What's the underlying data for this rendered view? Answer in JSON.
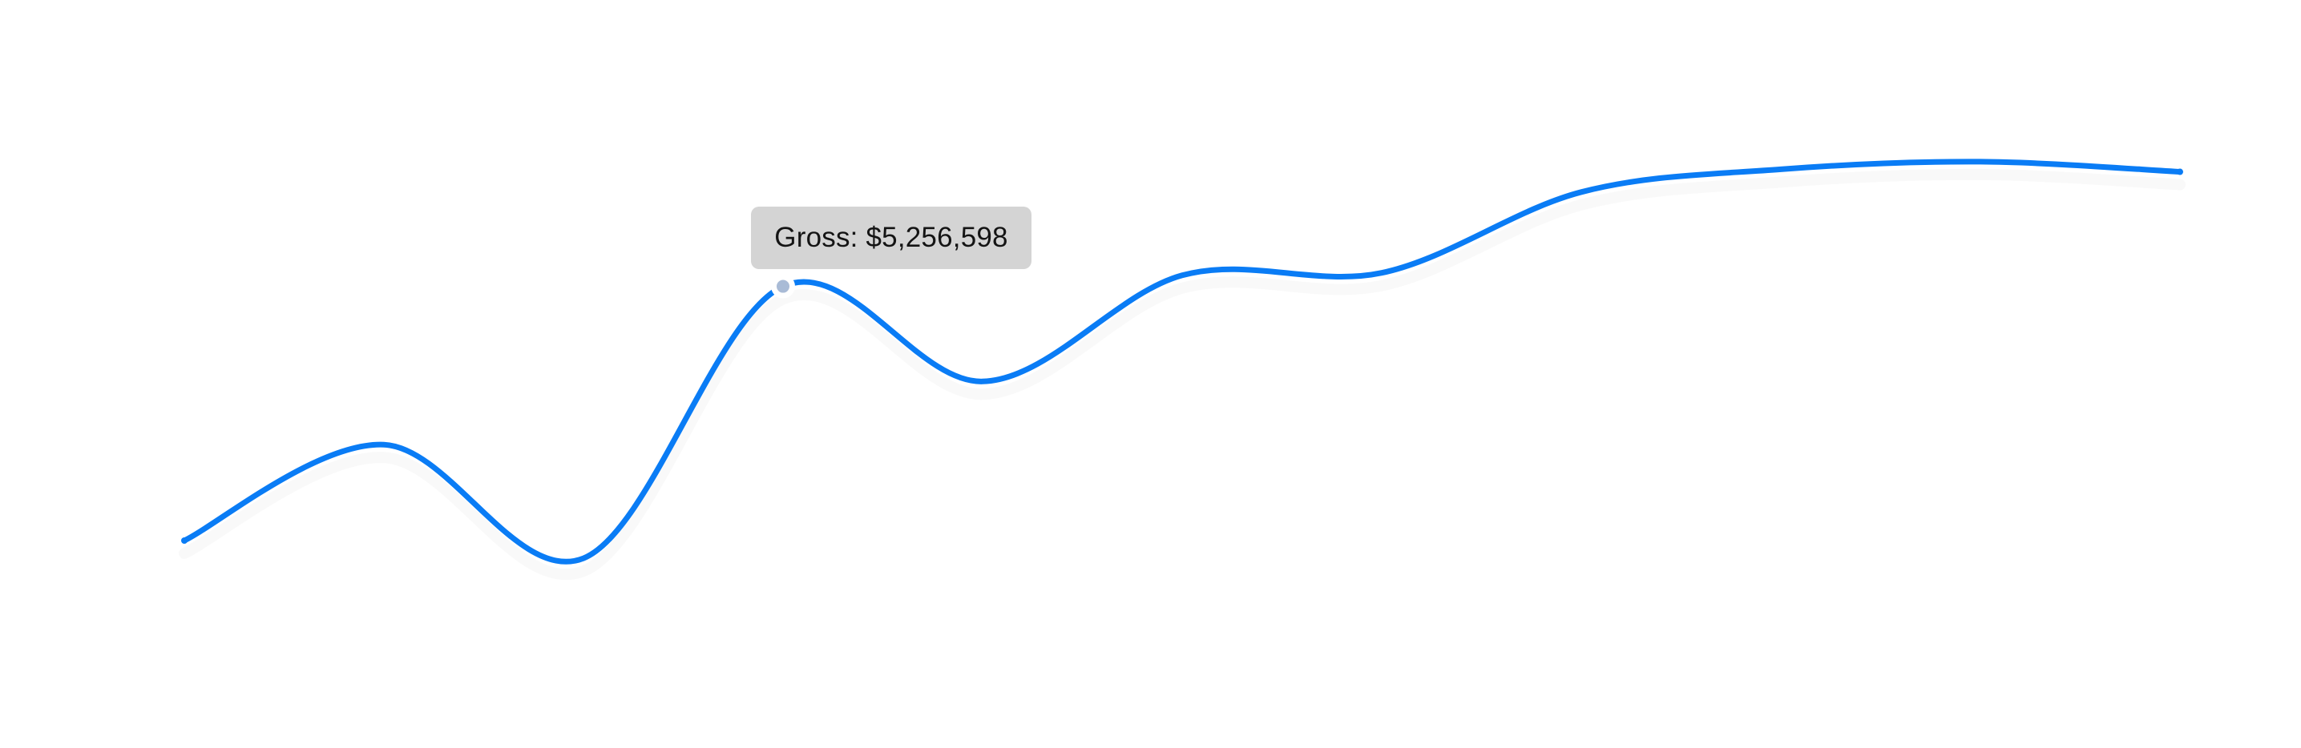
{
  "chart_data": {
    "type": "line",
    "title": "",
    "xlabel": "",
    "ylabel": "",
    "grid": false,
    "legend": "none",
    "x": [
      0,
      1,
      2,
      3,
      4,
      5,
      6,
      7,
      8,
      9,
      10
    ],
    "ylim": [
      3600000,
      6200000
    ],
    "series": [
      {
        "values": [
          4250000,
          4630000,
          4180000,
          5256598,
          4880000,
          5300000,
          5310000,
          5630000,
          5720000,
          5750000,
          5710000
        ],
        "color": "#0a7cf5"
      }
    ],
    "tooltip": {
      "point_index": 3,
      "series_name": "Gross",
      "value_text": "$5,256,598"
    }
  },
  "colors": {
    "line": "#0a7cf5",
    "tooltip_bg": "#d4d4d4",
    "marker": "#a9bbd6",
    "marker_ring": "#ffffff"
  }
}
